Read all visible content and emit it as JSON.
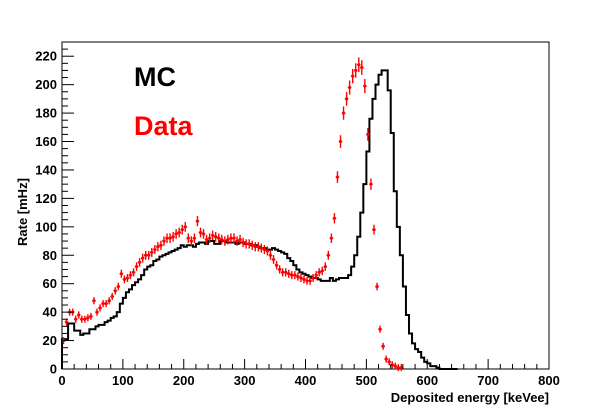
{
  "chart_data": {
    "type": "histogram",
    "title": "",
    "xlabel": "Deposited energy [keVee]",
    "ylabel": "Rate [mHz]",
    "xlim": [
      0,
      800
    ],
    "ylim": [
      0,
      230
    ],
    "grid": false,
    "legend_placement": "top-left",
    "x_ticks": [
      0,
      100,
      200,
      300,
      400,
      500,
      600,
      700,
      800
    ],
    "y_ticks": [
      0,
      20,
      40,
      60,
      80,
      100,
      120,
      140,
      160,
      180,
      200,
      220
    ],
    "series": [
      {
        "name": "MC",
        "color": "#000000",
        "style": "step",
        "bin_width": 5,
        "x_start": 0,
        "values": [
          21,
          21,
          32,
          32,
          27,
          27,
          24,
          25,
          25,
          28,
          28,
          30,
          31,
          31,
          33,
          34,
          36,
          37,
          40,
          46,
          50,
          54,
          56,
          59,
          61,
          63,
          66,
          70,
          72,
          73,
          76,
          77,
          79,
          80,
          81,
          82,
          83,
          84,
          85,
          87,
          86,
          87,
          87,
          86,
          88,
          89,
          89,
          88,
          90,
          90,
          88,
          88,
          90,
          90,
          89,
          89,
          89,
          88,
          89,
          89,
          88,
          88,
          87,
          87,
          86,
          85,
          85,
          84,
          84,
          85,
          84,
          83,
          82,
          81,
          78,
          76,
          73,
          70,
          68,
          67,
          66,
          65,
          64,
          64,
          63,
          62,
          62,
          62,
          64,
          62,
          63,
          64,
          64,
          64,
          66,
          72,
          80,
          93,
          110,
          130,
          153,
          176,
          190,
          200,
          207,
          210,
          210,
          196,
          166,
          125,
          100,
          80,
          58,
          38,
          25,
          18,
          14,
          12,
          8,
          5,
          4,
          2,
          2,
          1,
          0,
          0,
          0,
          0,
          0,
          0
        ]
      },
      {
        "name": "Data",
        "color": "#ff0000",
        "style": "points",
        "bin_width": 5,
        "x_start": 0,
        "values": [
          20,
          33,
          40,
          40,
          35,
          38,
          35,
          35,
          36,
          37,
          48,
          40,
          43,
          46,
          46,
          48,
          51,
          55,
          58,
          67,
          63,
          64,
          66,
          68,
          72,
          75,
          78,
          80,
          80,
          82,
          84,
          86,
          87,
          90,
          92,
          92,
          93,
          95,
          96,
          98,
          100,
          92,
          90,
          92,
          104,
          96,
          95,
          91,
          92,
          94,
          93,
          92,
          91,
          90,
          91,
          92,
          92,
          90,
          91,
          89,
          88,
          88,
          87,
          86,
          86,
          85,
          84,
          83,
          80,
          77,
          73,
          70,
          68,
          68,
          67,
          66,
          66,
          65,
          64,
          63,
          62,
          62,
          64,
          66,
          68,
          69,
          72,
          80,
          92,
          106,
          135,
          160,
          180,
          190,
          198,
          206,
          210,
          214,
          212,
          199,
          165,
          130,
          98,
          58,
          28,
          16,
          7,
          5,
          3,
          2,
          1,
          1,
          0,
          0,
          0,
          0,
          0,
          0,
          0,
          0,
          0,
          0,
          0,
          0,
          0,
          0,
          0,
          0,
          0,
          0
        ]
      }
    ],
    "legend": [
      {
        "label": "MC",
        "color": "#000000"
      },
      {
        "label": "Data",
        "color": "#ff0000"
      }
    ]
  }
}
